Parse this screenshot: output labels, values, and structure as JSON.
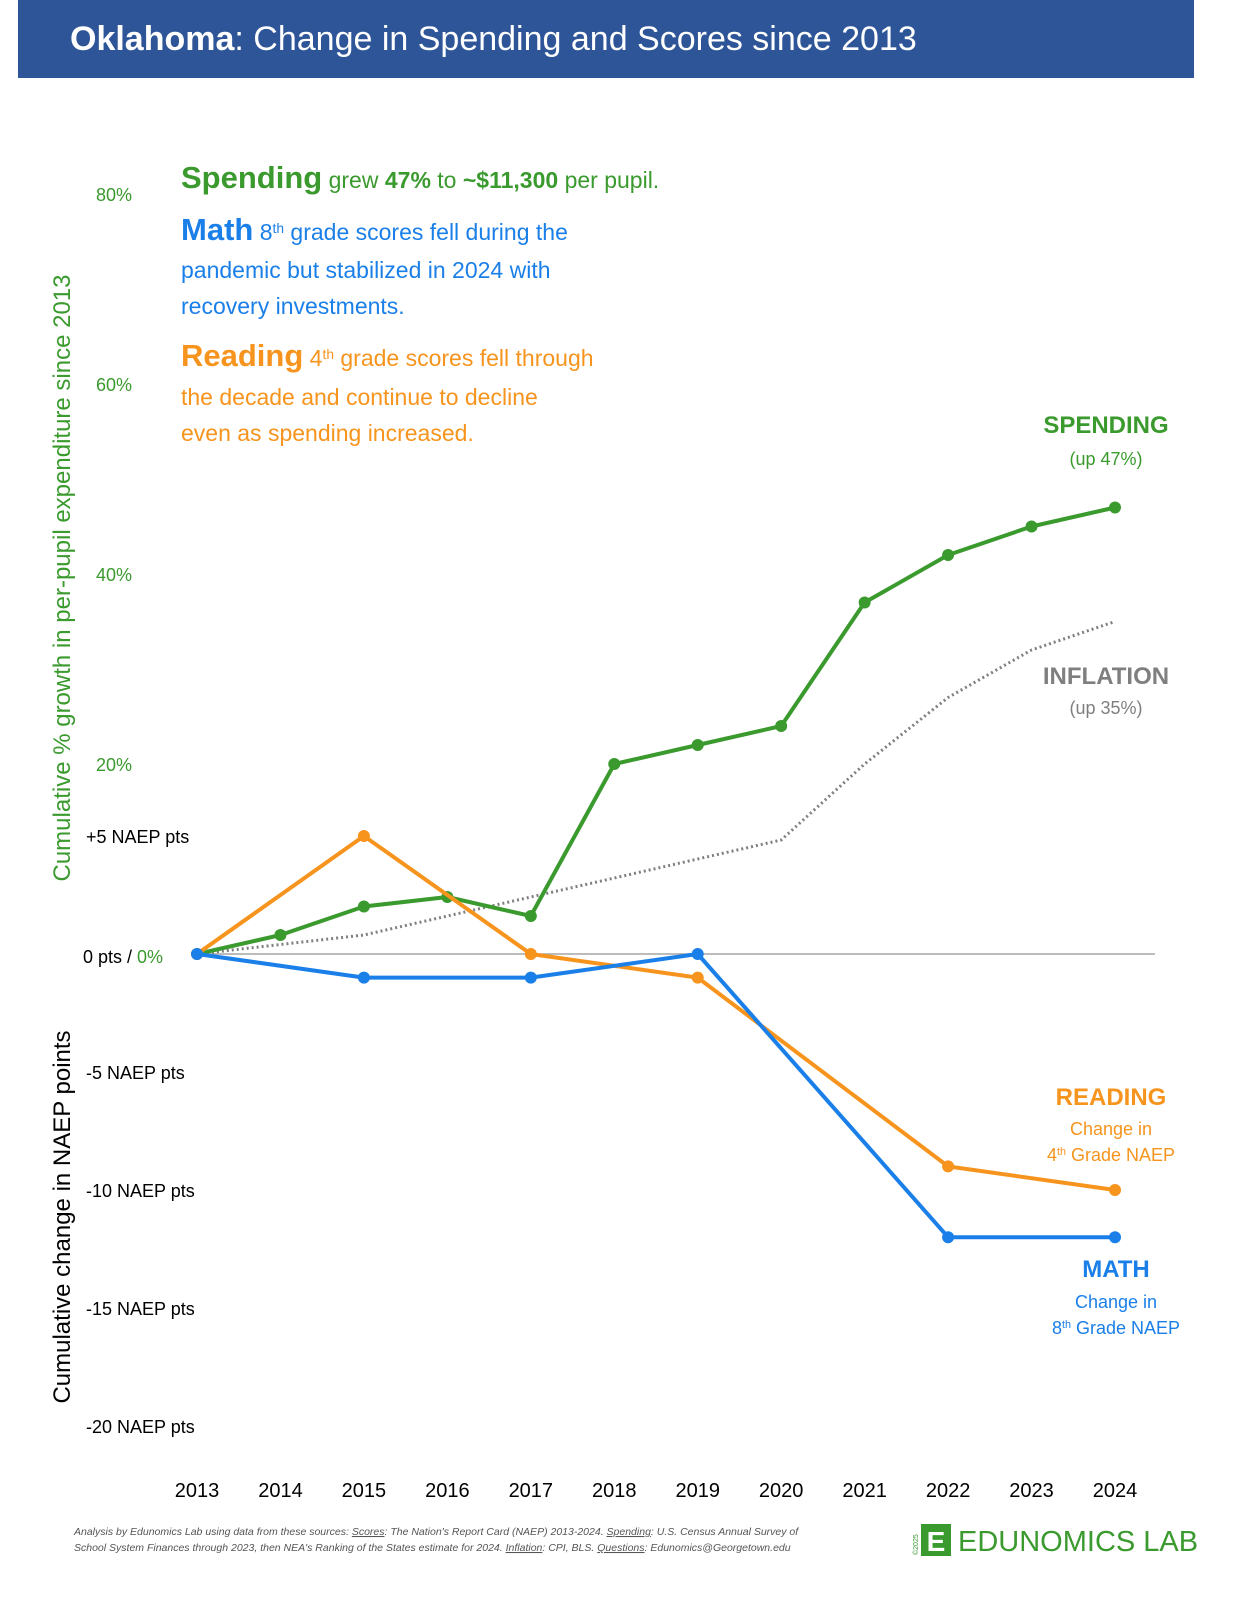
{
  "chart_data": {
    "type": "line",
    "title_bold": "Oklahoma",
    "title_rest": ": Change in Spending and Scores since 2013",
    "ylabel": "Cumulative % growth in per-pupil expenditure since 2013",
    "y2label": "Cumulative change in NAEP points",
    "xticks": [
      2013,
      2014,
      2015,
      2016,
      2017,
      2018,
      2019,
      2020,
      2021,
      2022,
      2023,
      2024
    ],
    "xlim": [
      2013,
      2024
    ],
    "ylim": [
      0,
      80
    ],
    "yticks": [
      {
        "value": 0,
        "label": "0%"
      },
      {
        "value": 20,
        "label": "20%"
      },
      {
        "value": 40,
        "label": "40%"
      },
      {
        "value": 60,
        "label": "60%"
      },
      {
        "value": 80,
        "label": "80%"
      }
    ],
    "y2lim": [
      -20,
      5
    ],
    "y2ticks": [
      {
        "value": 5,
        "label": "+5 NAEP pts"
      },
      {
        "value": 0,
        "label": "0 pts"
      },
      {
        "value": -5,
        "label": "-5 NAEP pts"
      },
      {
        "value": -10,
        "label": "-10 NAEP pts"
      },
      {
        "value": -15,
        "label": "-15 NAEP pts"
      },
      {
        "value": -20,
        "label": "-20 NAEP pts"
      }
    ],
    "zero_separator": " / ",
    "grid": false,
    "series": [
      {
        "name": "SPENDING",
        "color": "#3a9a2e",
        "markers": true,
        "dash": false,
        "x": [
          2013,
          2014,
          2015,
          2016,
          2017,
          2018,
          2019,
          2020,
          2021,
          2022,
          2023,
          2024
        ],
        "values": [
          0,
          2,
          5,
          6,
          4,
          20,
          22,
          24,
          37,
          42,
          45,
          47
        ],
        "note": [
          [
            {
              "text": "(up 47%)"
            }
          ]
        ]
      },
      {
        "name": "INFLATION",
        "color": "#7f7f7f",
        "markers": false,
        "dash": true,
        "x": [
          2013,
          2014,
          2015,
          2016,
          2017,
          2018,
          2019,
          2020,
          2021,
          2022,
          2023,
          2024
        ],
        "values": [
          0,
          1,
          2,
          4,
          6,
          8,
          10,
          12,
          20,
          27,
          32,
          35
        ],
        "note": [
          [
            {
              "text": "(up 35%)"
            }
          ]
        ]
      },
      {
        "name": "READING",
        "color": "#f7941d",
        "markers": true,
        "dash": false,
        "axis": "y2",
        "x": [
          2013,
          2015,
          2017,
          2019,
          2022,
          2024
        ],
        "values": [
          0,
          5,
          0,
          -1,
          -9,
          -10
        ],
        "note": [
          [
            {
              "text": "Change in"
            }
          ],
          [
            {
              "text": "4"
            },
            {
              "text": "th",
              "style": "sup"
            },
            {
              "text": " Grade NAEP"
            }
          ]
        ]
      },
      {
        "name": "MATH",
        "color": "#1a7fe8",
        "markers": true,
        "dash": false,
        "axis": "y2",
        "x": [
          2013,
          2015,
          2017,
          2019,
          2022,
          2024
        ],
        "values": [
          0,
          -1,
          -1,
          0,
          -12,
          -12
        ],
        "note": [
          [
            {
              "text": "Change in"
            }
          ],
          [
            {
              "text": "8"
            },
            {
              "text": "th",
              "style": "sup"
            },
            {
              "text": " Grade NAEP"
            }
          ]
        ]
      }
    ],
    "annotations": [
      {
        "color": "#3a9a2e",
        "lines": [
          [
            {
              "text": "Spending",
              "style": "lead"
            },
            {
              "text": " grew "
            },
            {
              "text": "47%",
              "style": "bold"
            },
            {
              "text": " to "
            },
            {
              "text": "~$11,300",
              "style": "bold"
            },
            {
              "text": " per pupil."
            }
          ]
        ]
      },
      {
        "color": "#1a7fe8",
        "lines": [
          [
            {
              "text": "Math",
              "style": "lead"
            },
            {
              "text": " 8"
            },
            {
              "text": "th",
              "style": "sup"
            },
            {
              "text": " grade scores fell during the"
            }
          ],
          [
            {
              "text": "pandemic but stabilized in 2024 with"
            }
          ],
          [
            {
              "text": "recovery investments."
            }
          ]
        ]
      },
      {
        "color": "#f7941d",
        "lines": [
          [
            {
              "text": "Reading",
              "style": "lead"
            },
            {
              "text": " 4"
            },
            {
              "text": "th",
              "style": "sup"
            },
            {
              "text": " grade scores fell through"
            }
          ],
          [
            {
              "text": "the decade and continue to decline"
            }
          ],
          [
            {
              "text": "even as spending increased."
            }
          ]
        ]
      }
    ],
    "source": [
      [
        {
          "text": "Analysis by Edunomics Lab using data from these sources: "
        },
        {
          "text": "Scores",
          "style": "u"
        },
        {
          "text": ": The Nation's Report Card (NAEP) 2013-2024. "
        },
        {
          "text": "Spending",
          "style": "u"
        },
        {
          "text": ": U.S. Census Annual Survey of"
        }
      ],
      [
        {
          "text": "School System Finances through 2023, then NEA's Ranking of the States estimate for 2024. "
        },
        {
          "text": "Inflation",
          "style": "u"
        },
        {
          "text": ": CPI, BLS. "
        },
        {
          "text": "Questions",
          "style": "u"
        },
        {
          "text": ": Edunomics@Georgetown.edu"
        }
      ]
    ],
    "logo_mark": "E",
    "logo_text": "EDUNOMICS LAB",
    "copyright": "©2025"
  }
}
